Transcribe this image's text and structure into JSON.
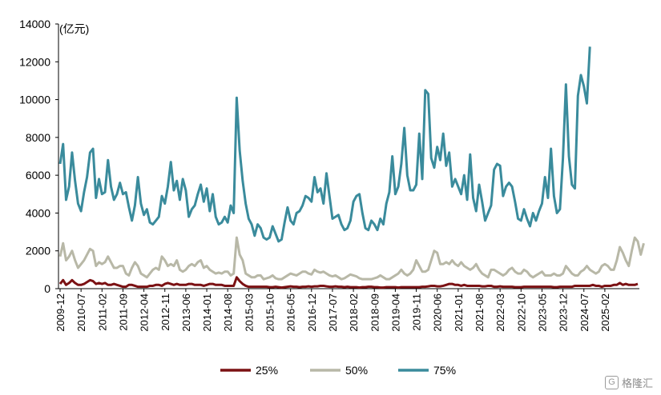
{
  "chart_data": {
    "type": "line",
    "unit_label": "(亿元)",
    "ylim": [
      0,
      14000
    ],
    "yticks": [
      0,
      2000,
      4000,
      6000,
      8000,
      10000,
      12000,
      14000
    ],
    "x_tick_labels": [
      "2009-12",
      "2010-07",
      "2011-02",
      "2011-09",
      "2012-04",
      "2012-11",
      "2013-06",
      "2014-01",
      "2014-08",
      "2015-03",
      "2015-10",
      "2016-05",
      "2016-12",
      "2017-07",
      "2018-02",
      "2018-09",
      "2019-04",
      "2019-11",
      "2020-06",
      "2021-01",
      "2021-08",
      "2022-03",
      "2022-10",
      "2023-05",
      "2023-12",
      "2024-07",
      "2025-02"
    ],
    "x_start": "2009-12",
    "legend_position": "bottom",
    "grid": false,
    "series": [
      {
        "name": "25%",
        "color": "#7b1113",
        "values": [
          250,
          450,
          200,
          300,
          450,
          300,
          200,
          200,
          250,
          350,
          450,
          400,
          250,
          300,
          250,
          300,
          200,
          200,
          250,
          200,
          150,
          100,
          100,
          200,
          200,
          150,
          100,
          100,
          100,
          100,
          150,
          150,
          200,
          200,
          150,
          250,
          300,
          250,
          200,
          250,
          200,
          200,
          200,
          250,
          250,
          200,
          200,
          200,
          150,
          200,
          250,
          250,
          200,
          200,
          200,
          150,
          150,
          150,
          150,
          600,
          400,
          250,
          150,
          100,
          100,
          100,
          100,
          100,
          100,
          100,
          80,
          80,
          100,
          80,
          60,
          80,
          100,
          120,
          100,
          100,
          80,
          100,
          100,
          120,
          100,
          120,
          120,
          150,
          150,
          120,
          100,
          100,
          120,
          100,
          100,
          80,
          100,
          80,
          80,
          80,
          60,
          80,
          80,
          100,
          100,
          80,
          80,
          60,
          60,
          80,
          80,
          80,
          80,
          60,
          80,
          80,
          80,
          80,
          80,
          80,
          80,
          100,
          100,
          120,
          150,
          150,
          120,
          120,
          150,
          200,
          250,
          250,
          200,
          200,
          150,
          200,
          150,
          150,
          150,
          150,
          150,
          120,
          120,
          150,
          150,
          100,
          100,
          120,
          100,
          100,
          100,
          100,
          80,
          80,
          80,
          100,
          100,
          100,
          100,
          100,
          100,
          100,
          100,
          100,
          100,
          80,
          80,
          100,
          100,
          100,
          100,
          100,
          150,
          150,
          150,
          150,
          150,
          150,
          200,
          150,
          150,
          100,
          150,
          150,
          150,
          200,
          200,
          300,
          200,
          250,
          200,
          200,
          200,
          250
        ]
      },
      {
        "name": "50%",
        "color": "#b8b8a7",
        "values": [
          1700,
          2400,
          1500,
          1700,
          2000,
          1500,
          1100,
          1300,
          1500,
          1800,
          2100,
          2000,
          1200,
          1400,
          1300,
          1400,
          1700,
          1400,
          1100,
          1100,
          1200,
          1200,
          800,
          700,
          1100,
          1400,
          1200,
          800,
          700,
          600,
          800,
          1000,
          1100,
          1000,
          1700,
          1500,
          1200,
          1300,
          1200,
          1500,
          1000,
          900,
          1000,
          1200,
          1300,
          1200,
          1400,
          1500,
          1100,
          1200,
          1000,
          900,
          800,
          850,
          800,
          900,
          900,
          700,
          800,
          2700,
          1800,
          1500,
          800,
          700,
          600,
          600,
          700,
          700,
          500,
          550,
          600,
          700,
          550,
          500,
          500,
          600,
          700,
          800,
          750,
          700,
          800,
          900,
          900,
          800,
          750,
          1000,
          900,
          850,
          900,
          800,
          700,
          650,
          700,
          600,
          500,
          550,
          650,
          750,
          700,
          650,
          550,
          500,
          500,
          500,
          500,
          550,
          600,
          700,
          600,
          500,
          500,
          600,
          700,
          800,
          1000,
          800,
          700,
          800,
          1000,
          1500,
          1200,
          900,
          900,
          1000,
          1500,
          2000,
          1900,
          1300,
          1300,
          1400,
          1300,
          1500,
          1300,
          1200,
          1400,
          1200,
          1100,
          1000,
          1100,
          1300,
          1000,
          800,
          700,
          600,
          1000,
          1000,
          900,
          800,
          700,
          800,
          1000,
          1100,
          900,
          800,
          800,
          1000,
          900,
          700,
          600,
          700,
          800,
          900,
          700,
          700,
          700,
          800,
          700,
          700,
          800,
          1200,
          1000,
          800,
          700,
          700,
          900,
          1000,
          1200,
          1000,
          900,
          800,
          900,
          1200,
          1300,
          1200,
          1000,
          1000,
          1500,
          2200,
          1900,
          1500,
          1200,
          2000,
          2700,
          2500,
          1800,
          2400
        ]
      },
      {
        "name": "75%",
        "color": "#3a8b9c",
        "values": [
          6600,
          7650,
          4700,
          5400,
          7200,
          5700,
          4500,
          4100,
          5100,
          5900,
          7200,
          7400,
          4800,
          5800,
          5000,
          5100,
          6800,
          5400,
          4700,
          5000,
          5600,
          5000,
          5100,
          4300,
          3600,
          4400,
          5900,
          4500,
          3900,
          4200,
          3500,
          3400,
          3600,
          3800,
          4900,
          4500,
          5400,
          6700,
          5200,
          5700,
          4700,
          5800,
          5200,
          3800,
          4200,
          4400,
          5000,
          5500,
          4600,
          5300,
          4100,
          5000,
          3800,
          3400,
          3500,
          3800,
          3500,
          4400,
          4000,
          10100,
          7300,
          5700,
          4500,
          3700,
          3400,
          2800,
          3400,
          3200,
          2700,
          2600,
          2700,
          3300,
          2900,
          2500,
          2600,
          3500,
          4300,
          3600,
          3400,
          4000,
          4100,
          4400,
          4900,
          4800,
          4600,
          5900,
          5100,
          5300,
          4500,
          6100,
          4900,
          3700,
          3800,
          3900,
          3400,
          3100,
          3200,
          3600,
          4600,
          4900,
          5000,
          4000,
          3200,
          3100,
          3600,
          3400,
          3100,
          3700,
          3400,
          4500,
          5100,
          7000,
          5000,
          5400,
          6600,
          8500,
          6000,
          5200,
          5200,
          5500,
          8200,
          5800,
          10500,
          10300,
          6900,
          6400,
          7500,
          6800,
          8200,
          6500,
          7200,
          5400,
          5800,
          5400,
          5000,
          6000,
          4700,
          7100,
          4800,
          4100,
          5500,
          4600,
          3600,
          4000,
          4400,
          6300,
          6600,
          6500,
          4900,
          5400,
          5600,
          5400,
          4600,
          3700,
          3600,
          4200,
          3700,
          3300,
          4000,
          3600,
          4100,
          4500,
          5900,
          4800,
          7400,
          4900,
          4000,
          4200,
          6900,
          10800,
          7000,
          5500,
          5300,
          10200,
          11300,
          10700,
          9800,
          12800
        ]
      }
    ]
  },
  "watermark": "格隆汇"
}
